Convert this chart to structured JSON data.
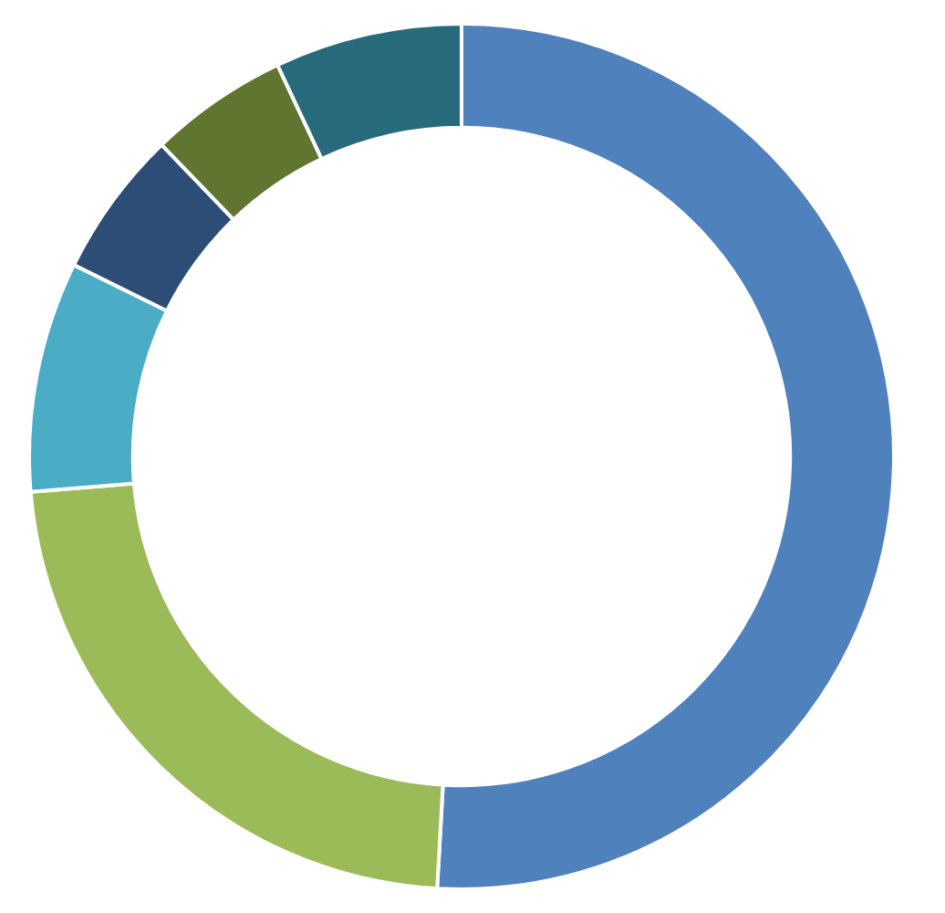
{
  "chart_data": {
    "type": "donut",
    "categories": [
      null,
      null,
      null,
      null,
      null,
      null
    ],
    "values": [
      50.9,
      22.8,
      8.6,
      5.5,
      5.2,
      7.0
    ],
    "colors": [
      "#4f81bd",
      "#9bbb59",
      "#4bacc6",
      "#2c4d75",
      "#5f7530",
      "#276a7c"
    ],
    "legend": false
  }
}
